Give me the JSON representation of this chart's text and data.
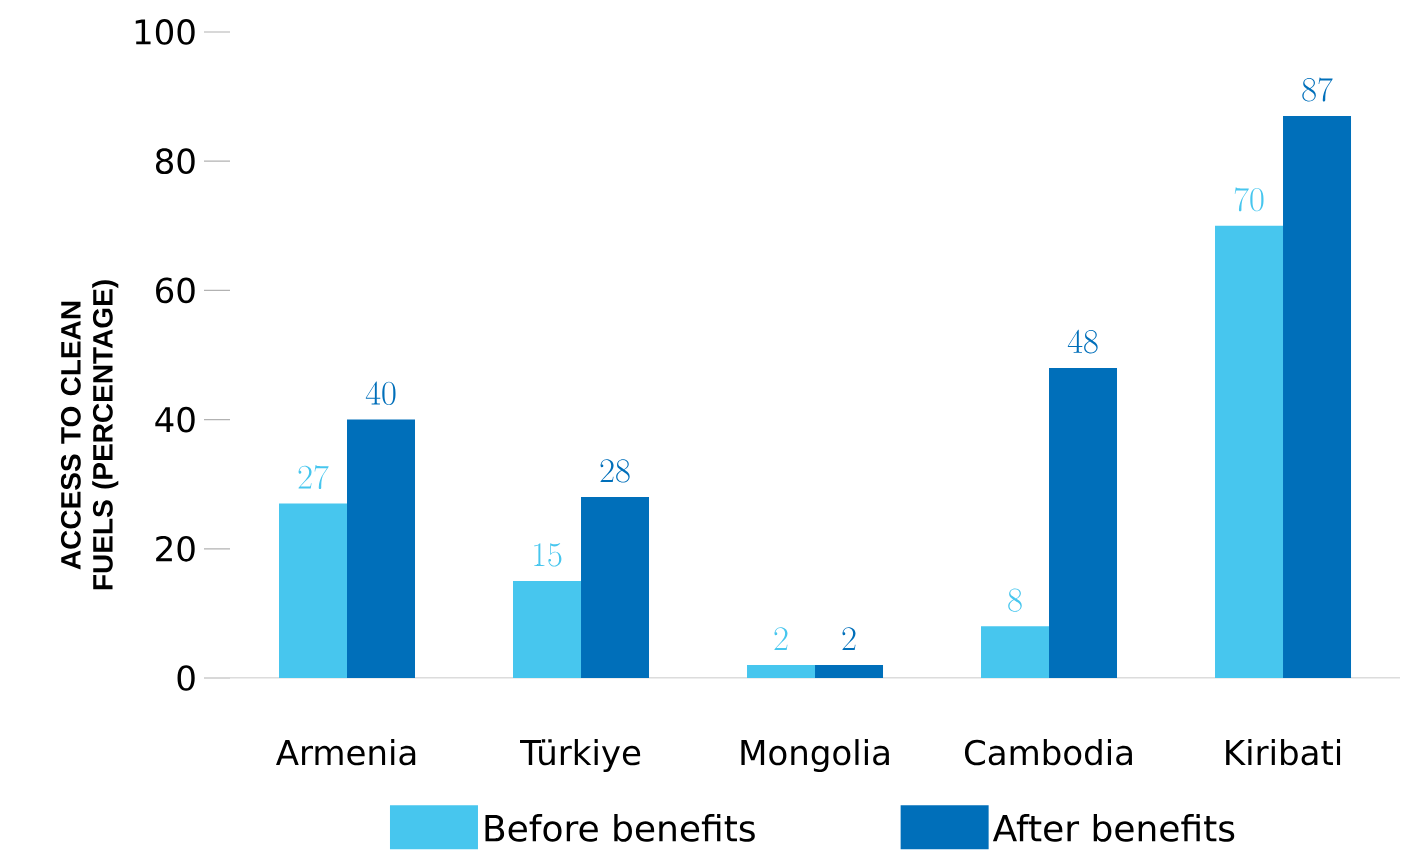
{
  "chart_data": {
    "type": "bar",
    "ylabel": "ACCESS TO CLEAN FUELS (PERCENTAGE)",
    "categories": [
      "Armenia",
      "Türkiye",
      "Mongolia",
      "Cambodia",
      "Kiribati"
    ],
    "series": [
      {
        "name": "Before benefits",
        "color": "#47c6ee",
        "values": [
          27,
          15,
          2,
          8,
          70
        ]
      },
      {
        "name": "After benefits",
        "color": "#006fba",
        "values": [
          40,
          28,
          2,
          48,
          87
        ]
      }
    ],
    "ylim": [
      0,
      100
    ],
    "yticks": [
      0,
      20,
      40,
      60,
      80,
      100
    ],
    "data_labels": true,
    "legend": "bottom"
  }
}
